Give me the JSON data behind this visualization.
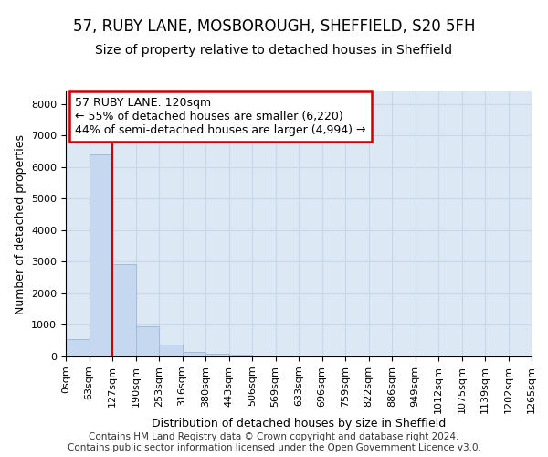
{
  "title1": "57, RUBY LANE, MOSBOROUGH, SHEFFIELD, S20 5FH",
  "title2": "Size of property relative to detached houses in Sheffield",
  "xlabel": "Distribution of detached houses by size in Sheffield",
  "ylabel": "Number of detached properties",
  "bar_values": [
    560,
    6400,
    2920,
    970,
    370,
    155,
    90,
    60,
    0,
    0,
    0,
    0,
    0,
    0,
    0,
    0,
    0,
    0,
    0,
    0
  ],
  "bar_labels": [
    "0sqm",
    "63sqm",
    "127sqm",
    "190sqm",
    "253sqm",
    "316sqm",
    "380sqm",
    "443sqm",
    "506sqm",
    "569sqm",
    "633sqm",
    "696sqm",
    "759sqm",
    "822sqm",
    "886sqm",
    "949sqm",
    "1012sqm",
    "1075sqm",
    "1139sqm",
    "1202sqm",
    "1265sqm"
  ],
  "bar_color": "#c5d8ef",
  "bar_edge_color": "#9ab8d8",
  "vline_x": 2.0,
  "vline_color": "#cc0000",
  "annotation_line1": "57 RUBY LANE: 120sqm",
  "annotation_line2": "← 55% of detached houses are smaller (6,220)",
  "annotation_line3": "44% of semi-detached houses are larger (4,994) →",
  "annotation_box_color": "#ffffff",
  "annotation_box_edge": "#cc0000",
  "ylim": [
    0,
    8400
  ],
  "yticks": [
    0,
    1000,
    2000,
    3000,
    4000,
    5000,
    6000,
    7000,
    8000
  ],
  "grid_color": "#c8d8e8",
  "background_color": "#dce8f4",
  "footer1": "Contains HM Land Registry data © Crown copyright and database right 2024.",
  "footer2": "Contains public sector information licensed under the Open Government Licence v3.0.",
  "title1_fontsize": 12,
  "title2_fontsize": 10,
  "xlabel_fontsize": 9,
  "ylabel_fontsize": 9,
  "tick_fontsize": 8,
  "annotation_fontsize": 9,
  "footer_fontsize": 7.5
}
